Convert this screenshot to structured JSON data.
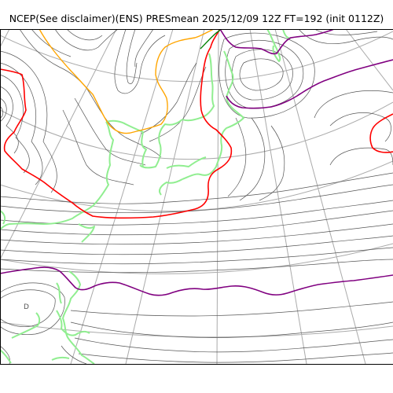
{
  "title": "NCEP(See disclaimer)(ENS) PRESmean 2025/12/09 12Z FT=192 (init 0112Z)",
  "map": {
    "variable": "PRESmean",
    "marker_label": "D",
    "colors": {
      "background": "#ffffff",
      "isobar": "#555555",
      "graticule": "#aaaaaa",
      "coastline": "#90ee90",
      "contour_red": "#ff0000",
      "contour_orange": "#ffa500",
      "contour_purple": "#800080",
      "contour_green": "#008000"
    }
  }
}
